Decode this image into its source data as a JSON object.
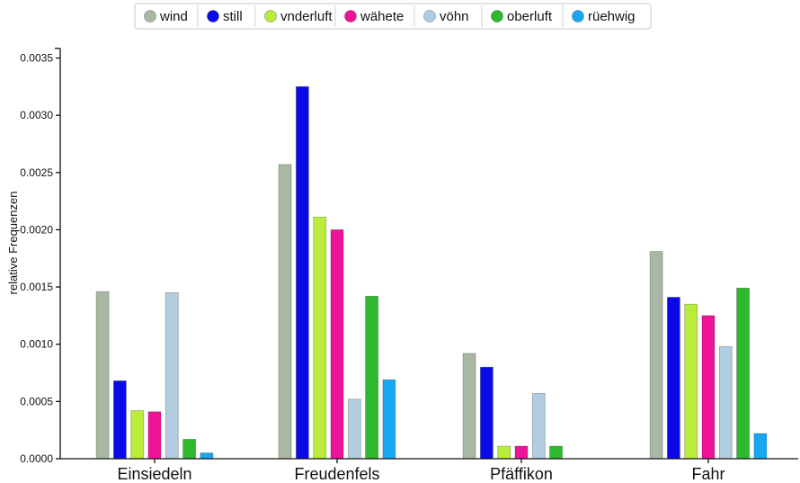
{
  "chart_data": {
    "type": "bar",
    "title": "",
    "xlabel": "",
    "ylabel": "relative Frequenzen",
    "ylim": [
      0,
      0.0036
    ],
    "yticks": [
      "0.0000",
      "0.0005",
      "0.0010",
      "0.0015",
      "0.0020",
      "0.0025",
      "0.0030",
      "0.0035"
    ],
    "yticks_values": [
      0,
      0.0005,
      0.001,
      0.0015,
      0.002,
      0.0025,
      0.003,
      0.0035
    ],
    "grid": false,
    "legend_position": "top-center",
    "categories": [
      "Einsiedeln",
      "Freudenfels",
      "Pfäffikon",
      "Fahr"
    ],
    "series": [
      {
        "name": "wind",
        "color": "#a9b8a2",
        "values": [
          0.00146,
          0.00257,
          0.00092,
          0.00181
        ]
      },
      {
        "name": "still",
        "color": "#0a0ae6",
        "values": [
          0.00068,
          0.00325,
          0.0008,
          0.00141
        ]
      },
      {
        "name": "vnderluft",
        "color": "#b9ec3b",
        "values": [
          0.00042,
          0.00211,
          0.00011,
          0.00135
        ]
      },
      {
        "name": "wähete",
        "color": "#ee1497",
        "values": [
          0.00041,
          0.002,
          0.00011,
          0.00125
        ]
      },
      {
        "name": "vöhn",
        "color": "#b2cde0",
        "values": [
          0.00145,
          0.00052,
          0.00057,
          0.00098
        ]
      },
      {
        "name": "oberluft",
        "color": "#2eb82e",
        "values": [
          0.00017,
          0.00142,
          0.00011,
          0.00149
        ]
      },
      {
        "name": "rüehwig",
        "color": "#1aa7f2",
        "values": [
          5e-05,
          0.00069,
          0.0,
          0.00022
        ]
      }
    ]
  }
}
